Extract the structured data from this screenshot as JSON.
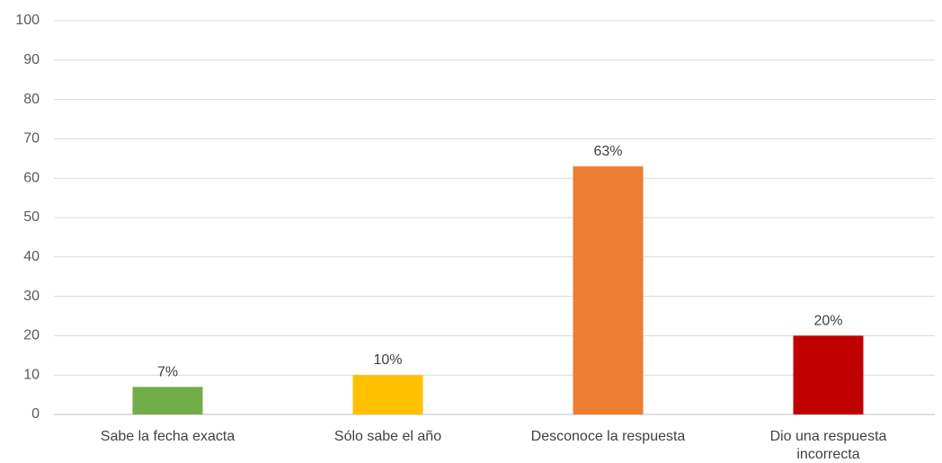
{
  "chart_data": {
    "type": "bar",
    "title": "",
    "xlabel": "",
    "ylabel": "",
    "ylim": [
      0,
      100
    ],
    "yticks": [
      0,
      10,
      20,
      30,
      40,
      50,
      60,
      70,
      80,
      90,
      100
    ],
    "grid": true,
    "categories": [
      [
        "Sabe la fecha exacta"
      ],
      [
        "Sólo sabe el año"
      ],
      [
        "Desconoce la respuesta"
      ],
      [
        "Dio una respuesta",
        "incorrecta"
      ]
    ],
    "values": [
      7,
      10,
      63,
      20
    ],
    "data_labels": [
      "7%",
      "10%",
      "63%",
      "20%"
    ],
    "colors": [
      "#70ad47",
      "#ffc000",
      "#ed7d31",
      "#c00000"
    ]
  }
}
